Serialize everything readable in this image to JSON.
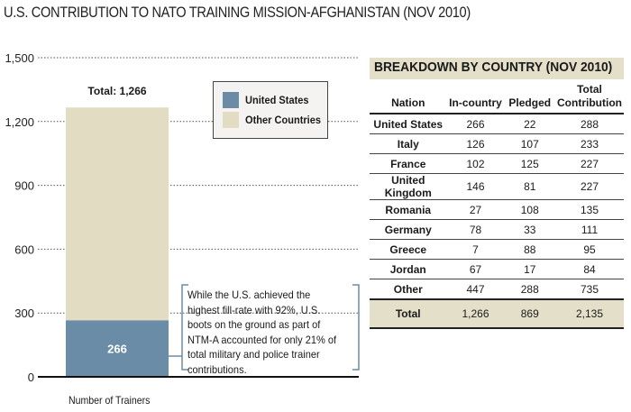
{
  "title": "U.S. CONTRIBUTION TO NATO TRAINING MISSION-AFGHANISTAN (NOV 2010)",
  "colors": {
    "united_states": "#6a8ca6",
    "other_countries": "#e2dcc3",
    "table_accent": "#e4dfc9",
    "note_border": "#6a8ca6"
  },
  "chart_data": {
    "type": "bar",
    "stacked": true,
    "categories": [
      "Number of Trainers"
    ],
    "series": [
      {
        "name": "United States",
        "values": [
          266
        ]
      },
      {
        "name": "Other Countries",
        "values": [
          1000
        ]
      }
    ],
    "total_label": "Total: 1,266",
    "bar_label": "266",
    "xlabel": "Number of Trainers",
    "ylabel": "",
    "ylim": [
      0,
      1500
    ],
    "yticks": [
      0,
      300,
      600,
      900,
      1200,
      1500
    ],
    "ytick_labels": [
      "0",
      "300",
      "600",
      "900",
      "1,200",
      "1,500"
    ],
    "grid": true,
    "legend": {
      "position": "top-right-of-bar",
      "entries": [
        "United States",
        "Other Countries"
      ]
    },
    "annotation": "While the U.S. achieved the highest fill-rate with 92%, U.S. boots on the ground as part of NTM-A accounted for only 21% of total military and police trainer contributions."
  },
  "table": {
    "title": "BREAKDOWN BY COUNTRY (NOV 2010)",
    "headers": [
      "Nation",
      "In-country",
      "Pledged",
      "Total Contribution"
    ],
    "header_lines": {
      "total_line1": "Total",
      "total_line2": "Contribution"
    },
    "rows": [
      {
        "nation": "United States",
        "in_country": "266",
        "pledged": "22",
        "total": "288"
      },
      {
        "nation": "Italy",
        "in_country": "126",
        "pledged": "107",
        "total": "233"
      },
      {
        "nation": "France",
        "in_country": "102",
        "pledged": "125",
        "total": "227"
      },
      {
        "nation": "United Kingdom",
        "in_country": "146",
        "pledged": "81",
        "total": "227"
      },
      {
        "nation": "Romania",
        "in_country": "27",
        "pledged": "108",
        "total": "135"
      },
      {
        "nation": "Germany",
        "in_country": "78",
        "pledged": "33",
        "total": "111"
      },
      {
        "nation": "Greece",
        "in_country": "7",
        "pledged": "88",
        "total": "95"
      },
      {
        "nation": "Jordan",
        "in_country": "67",
        "pledged": "17",
        "total": "84"
      },
      {
        "nation": "Other",
        "in_country": "447",
        "pledged": "288",
        "total": "735"
      }
    ],
    "total_row": {
      "nation": "Total",
      "in_country": "1,266",
      "pledged": "869",
      "total": "2,135"
    }
  }
}
